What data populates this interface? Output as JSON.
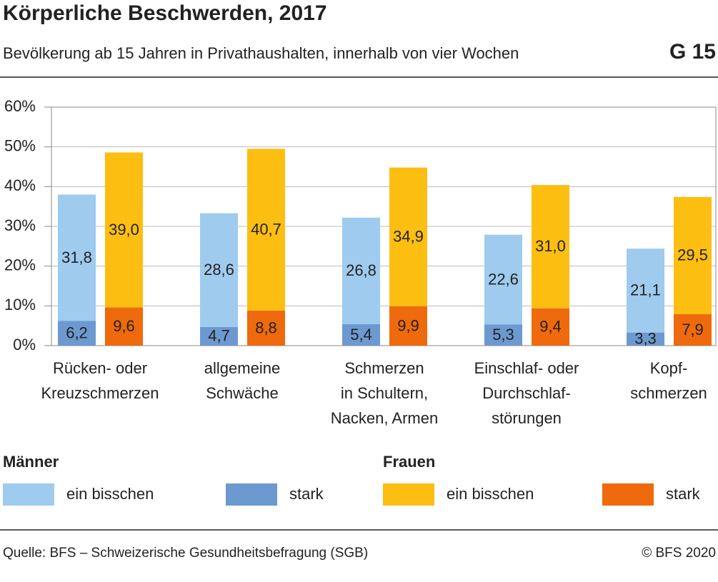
{
  "chart_data": {
    "type": "bar",
    "title": "Körperliche Beschwerden, 2017",
    "subtitle": "Bevölkerung ab 15 Jahren in Privathaushalten, innerhalb von vier Wochen",
    "chart_id": "G 15",
    "source": "Quelle: BFS – Schweizerische Gesundheitsbefragung (SGB)",
    "copyright": "© BFS 2020",
    "categories": [
      [
        "Rücken- oder",
        "Kreuzschmerzen"
      ],
      [
        "allgemeine",
        "Schwäche"
      ],
      [
        "Schmerzen",
        "in Schultern,",
        "Nacken, Armen"
      ],
      [
        "Einschlaf- oder",
        "Durchschlaf-",
        "störungen"
      ],
      [
        "Kopf-",
        "schmerzen"
      ]
    ],
    "ylim": [
      0,
      60
    ],
    "yticks": [
      {
        "value": 0,
        "label": "0%"
      },
      {
        "value": 10,
        "label": "10%"
      },
      {
        "value": 20,
        "label": "20%"
      },
      {
        "value": 30,
        "label": "30%"
      },
      {
        "value": 40,
        "label": "40%"
      },
      {
        "value": 50,
        "label": "50%"
      },
      {
        "value": 60,
        "label": "60%"
      }
    ],
    "grid": true,
    "groups": [
      {
        "name": "Männer",
        "series": [
          {
            "name": "ein bisschen",
            "color": "#9ecbee",
            "values": [
              31.8,
              28.6,
              26.8,
              22.6,
              21.1
            ],
            "value_labels": [
              "31,8",
              "28,6",
              "26,8",
              "22,6",
              "21,1"
            ]
          },
          {
            "name": "stark",
            "color": "#6c99d0",
            "values": [
              6.2,
              4.7,
              5.4,
              5.3,
              3.3
            ],
            "value_labels": [
              "6,2",
              "4,7",
              "5,4",
              "5,3",
              "3,3"
            ]
          }
        ]
      },
      {
        "name": "Frauen",
        "series": [
          {
            "name": "ein bisschen",
            "color": "#fdbe12",
            "values": [
              39.0,
              40.7,
              34.9,
              31.0,
              29.5
            ],
            "value_labels": [
              "39,0",
              "40,7",
              "34,9",
              "31,0",
              "29,5"
            ]
          },
          {
            "name": "stark",
            "color": "#ee6a0c",
            "values": [
              9.6,
              8.8,
              9.9,
              9.4,
              7.9
            ],
            "value_labels": [
              "9,6",
              "8,8",
              "9,9",
              "9,4",
              "7,9"
            ]
          }
        ]
      }
    ]
  }
}
